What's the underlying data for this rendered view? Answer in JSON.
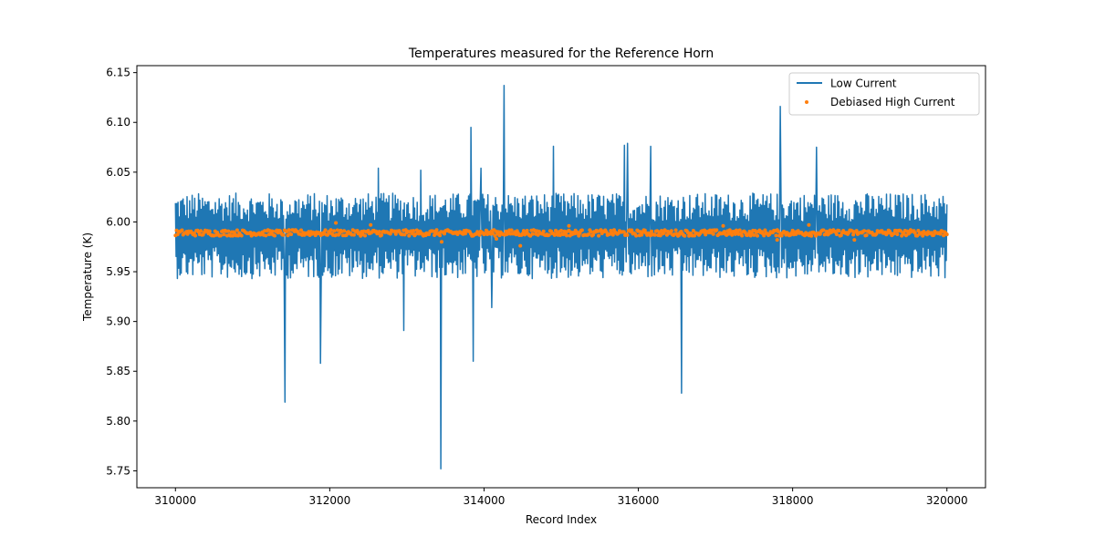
{
  "chart_data": {
    "type": "line",
    "title": "Temperatures measured for the Reference Horn",
    "xlabel": "Record Index",
    "ylabel": "Temperature (K)",
    "xlim": [
      309500,
      320500
    ],
    "ylim": [
      5.733,
      6.157
    ],
    "x_ticks": [
      310000,
      312000,
      314000,
      316000,
      318000,
      320000
    ],
    "x_tick_labels": [
      "310000",
      "312000",
      "314000",
      "316000",
      "318000",
      "320000"
    ],
    "y_ticks": [
      5.75,
      5.8,
      5.85,
      5.9,
      5.95,
      6.0,
      6.05,
      6.1,
      6.15
    ],
    "y_tick_labels": [
      "5.75",
      "5.80",
      "5.85",
      "5.90",
      "5.95",
      "6.00",
      "6.05",
      "6.10",
      "6.15"
    ],
    "legend_position": "top-right",
    "series": [
      {
        "name": "Low Current",
        "kind": "line",
        "color": "#1f77b4",
        "x_range": [
          310000,
          320000
        ],
        "typical_range": [
          5.955,
          6.025
        ],
        "spikes": [
          {
            "x": 311420,
            "y": 5.819
          },
          {
            "x": 311880,
            "y": 5.858
          },
          {
            "x": 312630,
            "y": 6.054
          },
          {
            "x": 312960,
            "y": 5.891
          },
          {
            "x": 313180,
            "y": 6.052
          },
          {
            "x": 313440,
            "y": 5.752
          },
          {
            "x": 313830,
            "y": 6.095
          },
          {
            "x": 313860,
            "y": 5.86
          },
          {
            "x": 313960,
            "y": 6.054
          },
          {
            "x": 314100,
            "y": 5.914
          },
          {
            "x": 314260,
            "y": 6.137
          },
          {
            "x": 314900,
            "y": 6.076
          },
          {
            "x": 315820,
            "y": 6.077
          },
          {
            "x": 315860,
            "y": 6.079
          },
          {
            "x": 316160,
            "y": 6.076
          },
          {
            "x": 316560,
            "y": 5.828
          },
          {
            "x": 317840,
            "y": 6.116
          },
          {
            "x": 318310,
            "y": 6.075
          }
        ]
      },
      {
        "name": "Debiased High Current",
        "kind": "scatter",
        "color": "#ff7f0e",
        "x_range": [
          310000,
          320000
        ],
        "center": 5.989,
        "spread": 0.003,
        "outliers": [
          {
            "x": 312080,
            "y": 5.999
          },
          {
            "x": 312530,
            "y": 5.997
          },
          {
            "x": 313450,
            "y": 5.98
          },
          {
            "x": 314160,
            "y": 5.983
          },
          {
            "x": 314470,
            "y": 5.976
          },
          {
            "x": 315100,
            "y": 5.996
          },
          {
            "x": 317100,
            "y": 5.996
          },
          {
            "x": 317800,
            "y": 5.982
          },
          {
            "x": 318210,
            "y": 5.997
          },
          {
            "x": 318800,
            "y": 5.982
          }
        ]
      }
    ]
  }
}
